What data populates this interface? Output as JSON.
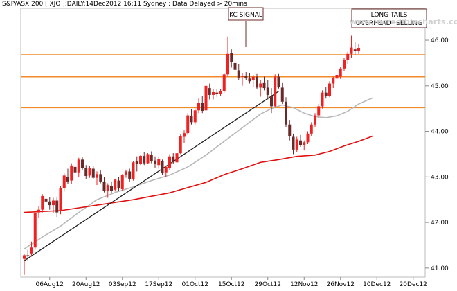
{
  "header": {
    "title": "S&P/ASX 200 [ XJO ]:DAILY:14Dec2012 16:11 Sydney : Data Delayed > 20mins",
    "site": "www.incrediblecharts.com"
  },
  "annotations": {
    "kc_signal": "KC SIGNAL",
    "long_tails_1": "LONG TAILS",
    "long_tails_2": "OVERHEAD=SELLING"
  },
  "colors": {
    "up": "#ee2222",
    "down": "#6b2a2a",
    "ma_long": "#e01010",
    "ma_short": "#b8b8b8",
    "levels": "#f08a2a",
    "trendline": "#222222"
  },
  "chart_data": {
    "type": "candlestick",
    "title": "S&P/ASX 200 [ XJO ]:DAILY:14Dec2012 16:11 Sydney : Data Delayed > 20mins",
    "ylim": [
      4080,
      4670
    ],
    "y_ticks": [
      4100,
      4200,
      4300,
      4400,
      4500,
      4600
    ],
    "y_tick_labels": [
      "41.00",
      "42.00",
      "43.00",
      "44.00",
      "45.00",
      "46.00"
    ],
    "x_tick_labels": [
      "06Aug12",
      "20Aug12",
      "03Sep12",
      "17Sep12",
      "01Oct12",
      "15Oct12",
      "29Oct12",
      "12Nov12",
      "26Nov12",
      "10Dec12",
      "20Dec12"
    ],
    "x_tick_index": [
      7,
      17,
      27,
      37,
      47,
      57,
      67,
      77,
      87,
      97,
      107
    ],
    "horizontal_levels": [
      4568,
      4520,
      4452
    ],
    "trendline": {
      "from": [
        0,
        4116
      ],
      "to": [
        70,
        4488
      ]
    },
    "ohlc": [
      [
        4120,
        4130,
        4085,
        4128
      ],
      [
        4128,
        4140,
        4115,
        4126
      ],
      [
        4132,
        4158,
        4125,
        4145
      ],
      [
        4145,
        4224,
        4140,
        4220
      ],
      [
        4222,
        4236,
        4210,
        4228
      ],
      [
        4228,
        4262,
        4222,
        4258
      ],
      [
        4252,
        4262,
        4240,
        4246
      ],
      [
        4246,
        4256,
        4228,
        4238
      ],
      [
        4238,
        4254,
        4220,
        4248
      ],
      [
        4248,
        4256,
        4212,
        4222
      ],
      [
        4225,
        4280,
        4218,
        4275
      ],
      [
        4275,
        4308,
        4268,
        4303
      ],
      [
        4300,
        4318,
        4285,
        4290
      ],
      [
        4292,
        4330,
        4285,
        4325
      ],
      [
        4322,
        4335,
        4305,
        4310
      ],
      [
        4310,
        4342,
        4300,
        4338
      ],
      [
        4338,
        4344,
        4315,
        4320
      ],
      [
        4320,
        4326,
        4296,
        4302
      ],
      [
        4303,
        4324,
        4298,
        4320
      ],
      [
        4318,
        4323,
        4295,
        4298
      ],
      [
        4298,
        4312,
        4282,
        4306
      ],
      [
        4306,
        4314,
        4286,
        4290
      ],
      [
        4290,
        4300,
        4266,
        4270
      ],
      [
        4270,
        4286,
        4254,
        4282
      ],
      [
        4280,
        4290,
        4265,
        4270
      ],
      [
        4272,
        4296,
        4268,
        4294
      ],
      [
        4292,
        4300,
        4270,
        4275
      ],
      [
        4273,
        4306,
        4270,
        4304
      ],
      [
        4304,
        4316,
        4298,
        4312
      ],
      [
        4312,
        4318,
        4290,
        4296
      ],
      [
        4296,
        4335,
        4292,
        4332
      ],
      [
        4334,
        4345,
        4312,
        4328
      ],
      [
        4328,
        4348,
        4326,
        4346
      ],
      [
        4346,
        4354,
        4326,
        4330
      ],
      [
        4330,
        4352,
        4328,
        4350
      ],
      [
        4348,
        4356,
        4330,
        4335
      ],
      [
        4336,
        4345,
        4320,
        4328
      ],
      [
        4326,
        4345,
        4318,
        4340
      ],
      [
        4334,
        4338,
        4305,
        4308
      ],
      [
        4310,
        4325,
        4300,
        4322
      ],
      [
        4320,
        4350,
        4315,
        4345
      ],
      [
        4345,
        4352,
        4328,
        4332
      ],
      [
        4332,
        4357,
        4330,
        4352
      ],
      [
        4352,
        4393,
        4350,
        4390
      ],
      [
        4388,
        4402,
        4375,
        4396
      ],
      [
        4396,
        4440,
        4392,
        4435
      ],
      [
        4433,
        4448,
        4415,
        4420
      ],
      [
        4420,
        4450,
        4415,
        4446
      ],
      [
        4446,
        4472,
        4440,
        4462
      ],
      [
        4462,
        4478,
        4440,
        4445
      ],
      [
        4446,
        4505,
        4442,
        4500
      ],
      [
        4495,
        4505,
        4470,
        4480
      ],
      [
        4480,
        4492,
        4470,
        4486
      ],
      [
        4485,
        4492,
        4476,
        4482
      ],
      [
        4482,
        4492,
        4478,
        4488
      ],
      [
        4488,
        4528,
        4485,
        4525
      ],
      [
        4525,
        4608,
        4520,
        4570
      ],
      [
        4572,
        4580,
        4540,
        4552
      ],
      [
        4550,
        4558,
        4525,
        4535
      ],
      [
        4534,
        4548,
        4512,
        4518
      ],
      [
        4520,
        4528,
        4500,
        4522
      ],
      [
        4522,
        4530,
        4512,
        4518
      ],
      [
        4516,
        4528,
        4505,
        4510
      ],
      [
        4512,
        4524,
        4498,
        4520
      ],
      [
        4520,
        4526,
        4492,
        4496
      ],
      [
        4496,
        4512,
        4476,
        4505
      ],
      [
        4506,
        4520,
        4490,
        4495
      ],
      [
        4496,
        4512,
        4470,
        4480
      ],
      [
        4478,
        4495,
        4440,
        4455
      ],
      [
        4455,
        4525,
        4452,
        4520
      ],
      [
        4520,
        4526,
        4494,
        4498
      ],
      [
        4496,
        4506,
        4460,
        4465
      ],
      [
        4465,
        4475,
        4410,
        4415
      ],
      [
        4415,
        4425,
        4380,
        4390
      ],
      [
        4388,
        4395,
        4350,
        4360
      ],
      [
        4360,
        4388,
        4355,
        4382
      ],
      [
        4380,
        4392,
        4366,
        4370
      ],
      [
        4370,
        4380,
        4358,
        4376
      ],
      [
        4376,
        4400,
        4372,
        4395
      ],
      [
        4395,
        4420,
        4390,
        4415
      ],
      [
        4415,
        4440,
        4410,
        4435
      ],
      [
        4435,
        4460,
        4430,
        4455
      ],
      [
        4455,
        4490,
        4450,
        4485
      ],
      [
        4485,
        4498,
        4472,
        4478
      ],
      [
        4478,
        4510,
        4475,
        4505
      ],
      [
        4505,
        4520,
        4495,
        4518
      ],
      [
        4516,
        4530,
        4505,
        4524
      ],
      [
        4520,
        4542,
        4515,
        4538
      ],
      [
        4538,
        4562,
        4532,
        4556
      ],
      [
        4556,
        4575,
        4548,
        4570
      ],
      [
        4570,
        4610,
        4562,
        4584
      ],
      [
        4580,
        4596,
        4568,
        4576
      ],
      [
        4576,
        4592,
        4570,
        4582
      ]
    ],
    "ma_short": [
      [
        0,
        4142
      ],
      [
        5,
        4168
      ],
      [
        10,
        4192
      ],
      [
        15,
        4222
      ],
      [
        20,
        4250
      ],
      [
        25,
        4266
      ],
      [
        30,
        4278
      ],
      [
        35,
        4292
      ],
      [
        40,
        4304
      ],
      [
        45,
        4322
      ],
      [
        50,
        4348
      ],
      [
        55,
        4378
      ],
      [
        60,
        4408
      ],
      [
        65,
        4438
      ],
      [
        68,
        4450
      ],
      [
        71,
        4458
      ],
      [
        74,
        4452
      ],
      [
        77,
        4440
      ],
      [
        80,
        4432
      ],
      [
        83,
        4430
      ],
      [
        86,
        4434
      ],
      [
        89,
        4444
      ],
      [
        92,
        4460
      ],
      [
        96,
        4474
      ]
    ],
    "ma_long": [
      [
        0,
        4222
      ],
      [
        10,
        4226
      ],
      [
        20,
        4238
      ],
      [
        30,
        4250
      ],
      [
        40,
        4265
      ],
      [
        50,
        4288
      ],
      [
        55,
        4305
      ],
      [
        60,
        4318
      ],
      [
        65,
        4332
      ],
      [
        70,
        4338
      ],
      [
        75,
        4345
      ],
      [
        80,
        4348
      ],
      [
        84,
        4356
      ],
      [
        88,
        4368
      ],
      [
        92,
        4378
      ],
      [
        96,
        4390
      ]
    ]
  }
}
